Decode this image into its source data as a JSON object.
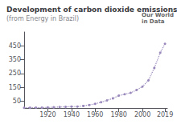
{
  "chart_data": {
    "type": "line",
    "title": "Development of carbon dioxide emissions",
    "subtitle": "(from Energy in Brazil)",
    "annotation": "Our World\nin Data",
    "x": [
      1900,
      1905,
      1910,
      1915,
      1920,
      1925,
      1930,
      1935,
      1940,
      1945,
      1950,
      1955,
      1960,
      1965,
      1970,
      1975,
      1980,
      1985,
      1990,
      1995,
      2000,
      2005,
      2010,
      2015,
      2019
    ],
    "values": [
      2,
      2,
      3,
      3,
      4,
      5,
      7,
      8,
      10,
      10,
      15,
      22,
      30,
      42,
      55,
      70,
      90,
      100,
      110,
      130,
      155,
      200,
      290,
      400,
      465
    ],
    "color": "#9988bb",
    "line_style": "dotted",
    "marker": "circle",
    "xlim": [
      1900,
      2021
    ],
    "xticks": [
      1920,
      1940,
      1960,
      1980,
      2000,
      2019
    ],
    "ylim": [
      0,
      550
    ],
    "yticks": [
      50,
      150,
      250,
      350,
      450
    ],
    "grid": false
  }
}
